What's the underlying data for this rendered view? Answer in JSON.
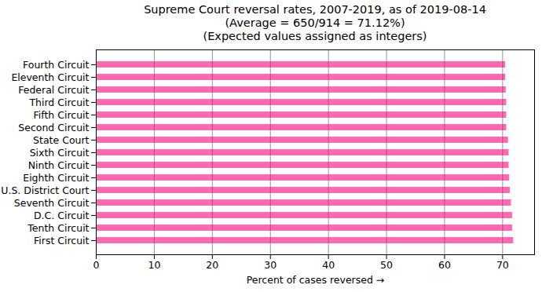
{
  "chart_data": {
    "type": "bar",
    "orientation": "horizontal",
    "title": "Supreme Court reversal rates, 2007-2019, as of 2019-08-14",
    "subtitle": [
      "(Average = 650/914 = 71.12%)",
      "(Expected values assigned as integers)"
    ],
    "xlabel": "Percent of cases reversed",
    "categories": [
      "Fourth Circuit",
      "Eleventh Circuit",
      "Federal Circuit",
      "Third Circuit",
      "Fifth Circuit",
      "Second Circuit",
      "State Court",
      "Sixth Circuit",
      "Ninth Circuit",
      "Eighth Circuit",
      "U.S. District Court",
      "Seventh Circuit",
      "D.C. Circuit",
      "Tenth Circuit",
      "First Circuit"
    ],
    "values": [
      70.5,
      70.5,
      70.6,
      70.7,
      70.7,
      70.7,
      71.0,
      71.1,
      71.1,
      71.2,
      71.3,
      71.5,
      71.7,
      71.7,
      71.9
    ],
    "color": "#ff69b4",
    "xlim": [
      0,
      75.5
    ],
    "xticks": [
      0,
      10,
      20,
      30,
      40,
      50,
      60,
      70
    ],
    "grid": true
  }
}
